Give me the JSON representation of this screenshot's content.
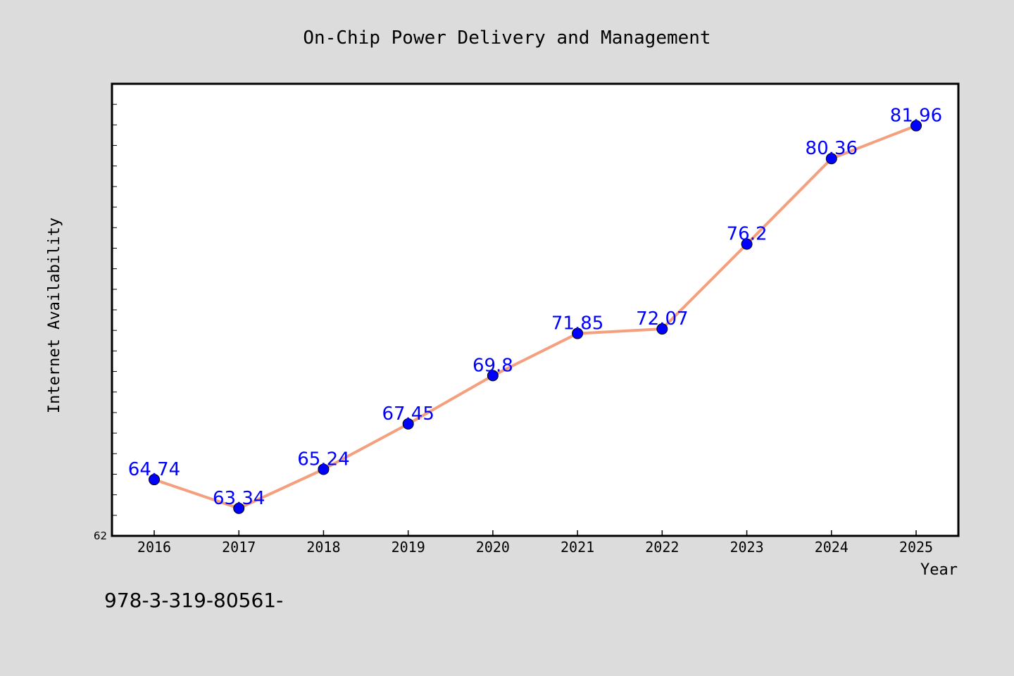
{
  "colors": {
    "background": "#dcdcdc",
    "plot_background": "#ffffff",
    "line": "#f4a07e",
    "marker": "#0000ff",
    "data_label": "#0000ff"
  },
  "footer_text": "978-3-319-80561-",
  "chart_data": {
    "type": "line",
    "title": "On-Chip Power Delivery and Management",
    "xlabel": "Year",
    "ylabel": "Internet Availability",
    "x": [
      "2016",
      "2017",
      "2018",
      "2019",
      "2020",
      "2021",
      "2022",
      "2023",
      "2024",
      "2025"
    ],
    "series": [
      {
        "values": [
          64.74,
          63.34,
          65.24,
          67.45,
          69.8,
          71.85,
          72.07,
          76.2,
          80.36,
          81.96
        ],
        "labels": [
          "64.74",
          "63.34",
          "65.24",
          "67.45",
          "69.8",
          "71.85",
          "72.07",
          "76.2",
          "80.36",
          "81.96"
        ]
      }
    ],
    "ylim": [
      62,
      84
    ],
    "y_tick_step": 1,
    "y_tick_labels_shown": [
      "62"
    ],
    "grid": false,
    "legend": "none"
  }
}
